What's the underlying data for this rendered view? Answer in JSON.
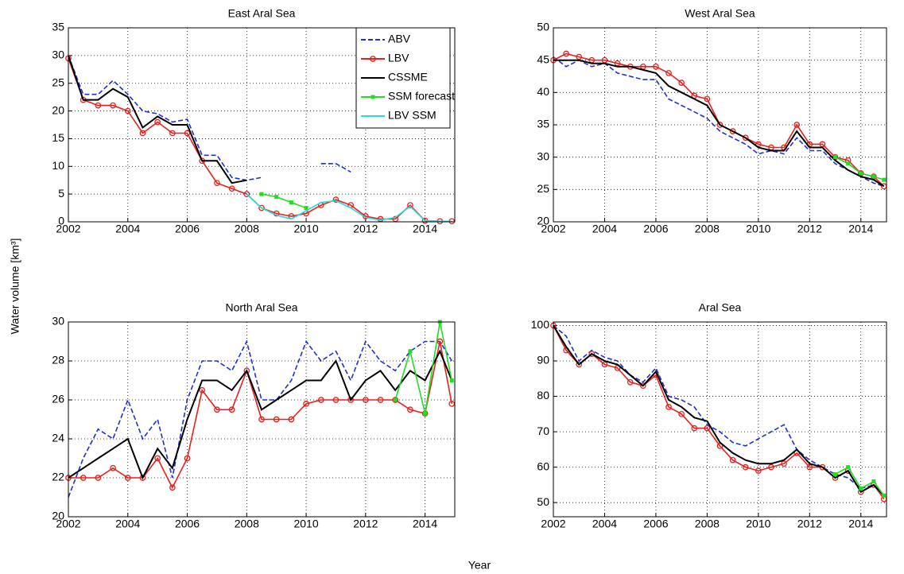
{
  "figure": {
    "ylabel": "Water volume [km³]",
    "xlabel": "Year"
  },
  "chart_data": [
    {
      "type": "line",
      "title": "East Aral Sea",
      "legend": "upper right",
      "grid": true,
      "xlim": [
        2002,
        2015
      ],
      "xticks": [
        2002,
        2004,
        2006,
        2008,
        2010,
        2012,
        2014
      ],
      "ylim": [
        0,
        35
      ],
      "yticks": [
        0,
        5,
        10,
        15,
        20,
        25,
        30,
        35
      ],
      "x": [
        2002,
        2002.5,
        2003,
        2003.5,
        2004,
        2004.5,
        2005,
        2005.5,
        2006,
        2006.5,
        2007,
        2007.5,
        2008,
        2008.5,
        2009,
        2009.5,
        2010,
        2010.5,
        2011,
        2011.5,
        2012,
        2012.5,
        2013,
        2013.5,
        2014,
        2014.5,
        2014.9
      ],
      "series": [
        {
          "name": "ABV",
          "color": "#1f2fd0",
          "linestyle": "--",
          "values": [
            30,
            23,
            23,
            25.5,
            23,
            20,
            19.5,
            18,
            18.5,
            12,
            12,
            8,
            7.5,
            8,
            null,
            null,
            null,
            10.5,
            10.5,
            9,
            null,
            null,
            null,
            null,
            null,
            null,
            null
          ]
        },
        {
          "name": "LBV",
          "color": "#e8201c",
          "marker": "o",
          "values": [
            29.5,
            22,
            21,
            21,
            20,
            16,
            18,
            16,
            16,
            11,
            7,
            6,
            5,
            2.5,
            1.5,
            1,
            1.5,
            3,
            4,
            3,
            1,
            0.5,
            0.5,
            3,
            0.2,
            0.1,
            0.1
          ]
        },
        {
          "name": "CSSME",
          "color": "#000000",
          "values": [
            30,
            22,
            22,
            24,
            22.5,
            17,
            19,
            17.5,
            17.5,
            11,
            11,
            7,
            7.5,
            null,
            null,
            null,
            null,
            null,
            null,
            null,
            null,
            null,
            null,
            null,
            null,
            null,
            null
          ]
        },
        {
          "name": "SSM forecast",
          "color": "#22dd22",
          "marker": "s",
          "values": [
            null,
            null,
            null,
            null,
            null,
            null,
            null,
            null,
            null,
            null,
            null,
            null,
            null,
            5,
            4.5,
            3.5,
            2.5,
            null,
            null,
            null,
            null,
            null,
            null,
            null,
            null,
            null,
            null
          ]
        },
        {
          "name": "LBV SSM",
          "color": "#22dddd",
          "values": [
            null,
            null,
            null,
            null,
            null,
            null,
            null,
            null,
            null,
            null,
            null,
            null,
            5,
            2.5,
            1.2,
            0.5,
            2,
            3.5,
            3.8,
            2.5,
            0.8,
            0.3,
            0.8,
            2.8,
            0.2,
            0.1,
            0.1
          ]
        }
      ]
    },
    {
      "type": "line",
      "title": "West Aral Sea",
      "grid": true,
      "xlim": [
        2002,
        2015
      ],
      "xticks": [
        2002,
        2004,
        2006,
        2008,
        2010,
        2012,
        2014
      ],
      "ylim": [
        20,
        50
      ],
      "yticks": [
        20,
        25,
        30,
        35,
        40,
        45,
        50
      ],
      "x": [
        2002,
        2002.5,
        2003,
        2003.5,
        2004,
        2004.5,
        2005,
        2005.5,
        2006,
        2006.5,
        2007,
        2007.5,
        2008,
        2008.5,
        2009,
        2009.5,
        2010,
        2010.5,
        2011,
        2011.5,
        2012,
        2012.5,
        2013,
        2013.5,
        2014,
        2014.5,
        2014.9
      ],
      "series": [
        {
          "name": "ABV",
          "color": "#1f2fd0",
          "linestyle": "--",
          "values": [
            45.5,
            44,
            45,
            44,
            44.5,
            43,
            42.5,
            42,
            42,
            39,
            38,
            37,
            36,
            34,
            33,
            32,
            30.5,
            31,
            30.5,
            33,
            31,
            31,
            29,
            28,
            27,
            26,
            25.5
          ]
        },
        {
          "name": "LBV",
          "color": "#e8201c",
          "marker": "o",
          "values": [
            45,
            46,
            45.5,
            45,
            45,
            44.5,
            44,
            44,
            44,
            43,
            41.5,
            39.5,
            39,
            35,
            34,
            33,
            32,
            31.5,
            31.5,
            35,
            32,
            32,
            30,
            29.5,
            27.5,
            27,
            25.5
          ]
        },
        {
          "name": "CSSME",
          "color": "#000000",
          "values": [
            45,
            45,
            45,
            44.5,
            44.5,
            44,
            44,
            43.5,
            43,
            41,
            40,
            39,
            38,
            35,
            34,
            33,
            31.5,
            31,
            31,
            34,
            31.5,
            31.5,
            29.5,
            28,
            27,
            26.5,
            25.5
          ]
        },
        {
          "name": "SSM forecast",
          "color": "#22dd22",
          "marker": "s",
          "values": [
            null,
            null,
            null,
            null,
            null,
            null,
            null,
            null,
            null,
            null,
            null,
            null,
            null,
            null,
            null,
            null,
            null,
            null,
            null,
            null,
            null,
            null,
            30,
            29,
            27.5,
            27,
            26.5
          ]
        }
      ]
    },
    {
      "type": "line",
      "title": "North Aral Sea",
      "grid": true,
      "xlim": [
        2002,
        2015
      ],
      "xticks": [
        2002,
        2004,
        2006,
        2008,
        2010,
        2012,
        2014
      ],
      "ylim": [
        20,
        30
      ],
      "yticks": [
        20,
        22,
        24,
        26,
        28,
        30
      ],
      "x": [
        2002,
        2002.5,
        2003,
        2003.5,
        2004,
        2004.5,
        2005,
        2005.5,
        2006,
        2006.5,
        2007,
        2007.5,
        2008,
        2008.5,
        2009,
        2009.5,
        2010,
        2010.5,
        2011,
        2011.5,
        2012,
        2012.5,
        2013,
        2013.5,
        2014,
        2014.5,
        2014.9
      ],
      "series": [
        {
          "name": "ABV",
          "color": "#1f2fd0",
          "linestyle": "--",
          "values": [
            21,
            23,
            24.5,
            24,
            26,
            24,
            25,
            22,
            26,
            28,
            28,
            27.5,
            29,
            26,
            26,
            27,
            29,
            28,
            28.5,
            27,
            29,
            28,
            27.5,
            28.5,
            29,
            29,
            28
          ]
        },
        {
          "name": "LBV",
          "color": "#e8201c",
          "marker": "o",
          "values": [
            22,
            22,
            22,
            22.5,
            22,
            22,
            23,
            21.5,
            23,
            26.5,
            25.5,
            25.5,
            27.5,
            25,
            25,
            25,
            25.8,
            26,
            26,
            26,
            26,
            26,
            26,
            25.5,
            25.3,
            29,
            25.8
          ]
        },
        {
          "name": "CSSME",
          "color": "#000000",
          "values": [
            22,
            22.5,
            23,
            23.5,
            24,
            22,
            23.5,
            22.5,
            25,
            27,
            27,
            26.5,
            27.5,
            25.5,
            26,
            26.5,
            27,
            27,
            28,
            26,
            27,
            27.5,
            26.5,
            27.5,
            27,
            28.5,
            27
          ]
        },
        {
          "name": "SSM forecast",
          "color": "#22dd22",
          "marker": "s",
          "values": [
            null,
            null,
            null,
            null,
            null,
            null,
            null,
            null,
            null,
            null,
            null,
            null,
            null,
            null,
            null,
            null,
            null,
            null,
            null,
            null,
            null,
            null,
            26,
            28.5,
            25.3,
            30,
            27
          ]
        }
      ]
    },
    {
      "type": "line",
      "title": "Aral Sea",
      "grid": true,
      "xlim": [
        2002,
        2015
      ],
      "xticks": [
        2002,
        2004,
        2006,
        2008,
        2010,
        2012,
        2014
      ],
      "ylim": [
        46,
        101
      ],
      "yticks": [
        50,
        60,
        70,
        80,
        90,
        100
      ],
      "x": [
        2002,
        2002.5,
        2003,
        2003.5,
        2004,
        2004.5,
        2005,
        2005.5,
        2006,
        2006.5,
        2007,
        2007.5,
        2008,
        2008.5,
        2009,
        2009.5,
        2010,
        2010.5,
        2011,
        2011.5,
        2012,
        2012.5,
        2013,
        2013.5,
        2014,
        2014.5,
        2014.9
      ],
      "series": [
        {
          "name": "ABV",
          "color": "#1f2fd0",
          "linestyle": "--",
          "values": [
            100,
            97,
            90,
            93,
            91,
            90,
            86,
            84,
            88,
            80,
            79,
            77,
            72,
            70,
            67,
            66,
            68,
            70,
            72,
            65,
            62,
            60,
            58,
            57,
            54,
            55,
            52
          ]
        },
        {
          "name": "LBV",
          "color": "#e8201c",
          "marker": "o",
          "values": [
            100,
            93,
            89,
            92,
            89,
            88,
            84,
            83,
            86,
            77,
            75,
            71,
            71,
            66,
            62,
            60,
            59,
            60,
            61,
            64,
            60,
            60,
            57,
            59,
            53,
            55,
            51
          ]
        },
        {
          "name": "CSSME",
          "color": "#000000",
          "values": [
            100,
            94,
            89,
            92,
            90,
            89,
            86,
            83,
            87,
            79,
            77,
            74,
            73,
            67,
            64,
            62,
            61,
            61,
            62,
            65,
            61,
            60,
            57,
            59,
            53,
            55,
            52
          ]
        },
        {
          "name": "SSM forecast",
          "color": "#22dd22",
          "marker": "s",
          "values": [
            null,
            null,
            null,
            null,
            null,
            null,
            null,
            null,
            null,
            null,
            null,
            null,
            null,
            null,
            null,
            null,
            null,
            null,
            null,
            null,
            null,
            null,
            58,
            60,
            54,
            56,
            52
          ]
        }
      ]
    }
  ]
}
